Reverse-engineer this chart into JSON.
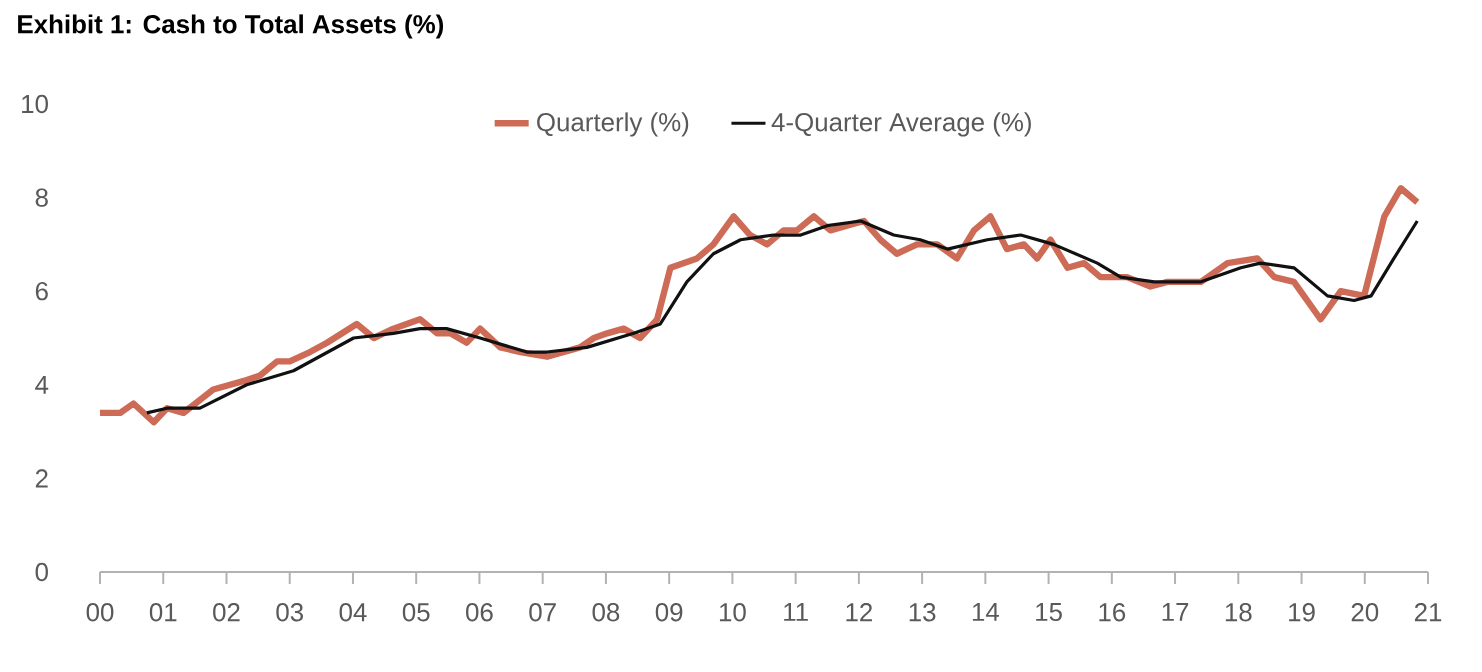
{
  "chart_data": {
    "type": "line",
    "title": "Exhibit 1: Cash to Total Assets (%)",
    "ylim": [
      0,
      10
    ],
    "yticks": [
      0,
      2,
      4,
      6,
      8,
      10
    ],
    "xlim": [
      0,
      21
    ],
    "xticks": [
      {
        "value": 0,
        "label": "00"
      },
      {
        "value": 1,
        "label": "01"
      },
      {
        "value": 2,
        "label": "02"
      },
      {
        "value": 3,
        "label": "03"
      },
      {
        "value": 4,
        "label": "04"
      },
      {
        "value": 5,
        "label": "05"
      },
      {
        "value": 6,
        "label": "06"
      },
      {
        "value": 7,
        "label": "07"
      },
      {
        "value": 8,
        "label": "08"
      },
      {
        "value": 9,
        "label": "09"
      },
      {
        "value": 10,
        "label": "10"
      },
      {
        "value": 11,
        "label": "11"
      },
      {
        "value": 12,
        "label": "12"
      },
      {
        "value": 13,
        "label": "13"
      },
      {
        "value": 14,
        "label": "14"
      },
      {
        "value": 15,
        "label": "15"
      },
      {
        "value": 16,
        "label": "16"
      },
      {
        "value": 17,
        "label": "17"
      },
      {
        "value": 18,
        "label": "18"
      },
      {
        "value": 19,
        "label": "19"
      },
      {
        "value": 20,
        "label": "20"
      },
      {
        "value": 21,
        "label": "21"
      }
    ],
    "legend": "top",
    "grid": false,
    "marker": "none",
    "line_style": "solid",
    "series": [
      {
        "name": "Quarterly (%)",
        "color": "#cd6b57",
        "x": [
          0.0,
          0.32,
          0.53,
          0.85,
          1.06,
          1.32,
          1.79,
          2.32,
          2.53,
          2.8,
          3.0,
          3.32,
          3.59,
          4.06,
          4.33,
          4.64,
          5.06,
          5.33,
          5.54,
          5.8,
          6.01,
          6.33,
          6.65,
          7.07,
          7.59,
          7.81,
          8.02,
          8.28,
          8.54,
          8.81,
          9.02,
          9.44,
          9.7,
          10.02,
          10.28,
          10.55,
          10.81,
          11.02,
          11.29,
          11.55,
          11.81,
          12.08,
          12.34,
          12.6,
          12.92,
          13.24,
          13.55,
          13.82,
          14.08,
          14.34,
          14.61,
          14.82,
          15.03,
          15.3,
          15.56,
          15.82,
          16.24,
          16.61,
          16.88,
          17.41,
          17.83,
          18.3,
          18.57,
          18.88,
          19.3,
          19.62,
          19.99,
          20.31,
          20.57,
          20.83
        ],
        "values": [
          3.4,
          3.4,
          3.6,
          3.2,
          3.5,
          3.4,
          3.9,
          4.1,
          4.2,
          4.5,
          4.5,
          4.7,
          4.9,
          5.3,
          5.0,
          5.2,
          5.4,
          5.1,
          5.1,
          4.9,
          5.2,
          4.8,
          4.7,
          4.6,
          4.8,
          5.0,
          5.1,
          5.2,
          5.0,
          5.4,
          6.5,
          6.7,
          7.0,
          7.6,
          7.2,
          7.0,
          7.3,
          7.3,
          7.6,
          7.3,
          7.4,
          7.5,
          7.1,
          6.8,
          7.0,
          7.0,
          6.7,
          7.3,
          7.6,
          6.9,
          7.0,
          6.7,
          7.1,
          6.5,
          6.6,
          6.3,
          6.3,
          6.1,
          6.2,
          6.2,
          6.6,
          6.7,
          6.3,
          6.2,
          5.4,
          6.0,
          5.9,
          7.6,
          8.2,
          7.9
        ]
      },
      {
        "name": "4-Quarter Average (%)",
        "color": "#111111",
        "x": [
          0.74,
          1.06,
          1.58,
          2.32,
          3.06,
          4.01,
          4.64,
          5.06,
          5.48,
          6.01,
          6.75,
          7.07,
          7.7,
          8.44,
          8.86,
          9.28,
          9.7,
          10.13,
          10.65,
          11.08,
          11.5,
          12.03,
          12.55,
          12.97,
          13.4,
          14.03,
          14.56,
          15.08,
          15.77,
          16.14,
          16.67,
          17.41,
          18.04,
          18.35,
          18.88,
          19.41,
          19.83,
          20.1,
          20.46,
          20.83
        ],
        "values": [
          3.4,
          3.5,
          3.5,
          4.0,
          4.3,
          5.0,
          5.1,
          5.2,
          5.2,
          5.0,
          4.7,
          4.7,
          4.8,
          5.1,
          5.3,
          6.2,
          6.8,
          7.1,
          7.2,
          7.2,
          7.4,
          7.5,
          7.2,
          7.1,
          6.9,
          7.1,
          7.2,
          7.0,
          6.6,
          6.3,
          6.2,
          6.2,
          6.5,
          6.6,
          6.5,
          5.9,
          5.8,
          5.9,
          6.7,
          7.5
        ]
      }
    ]
  }
}
